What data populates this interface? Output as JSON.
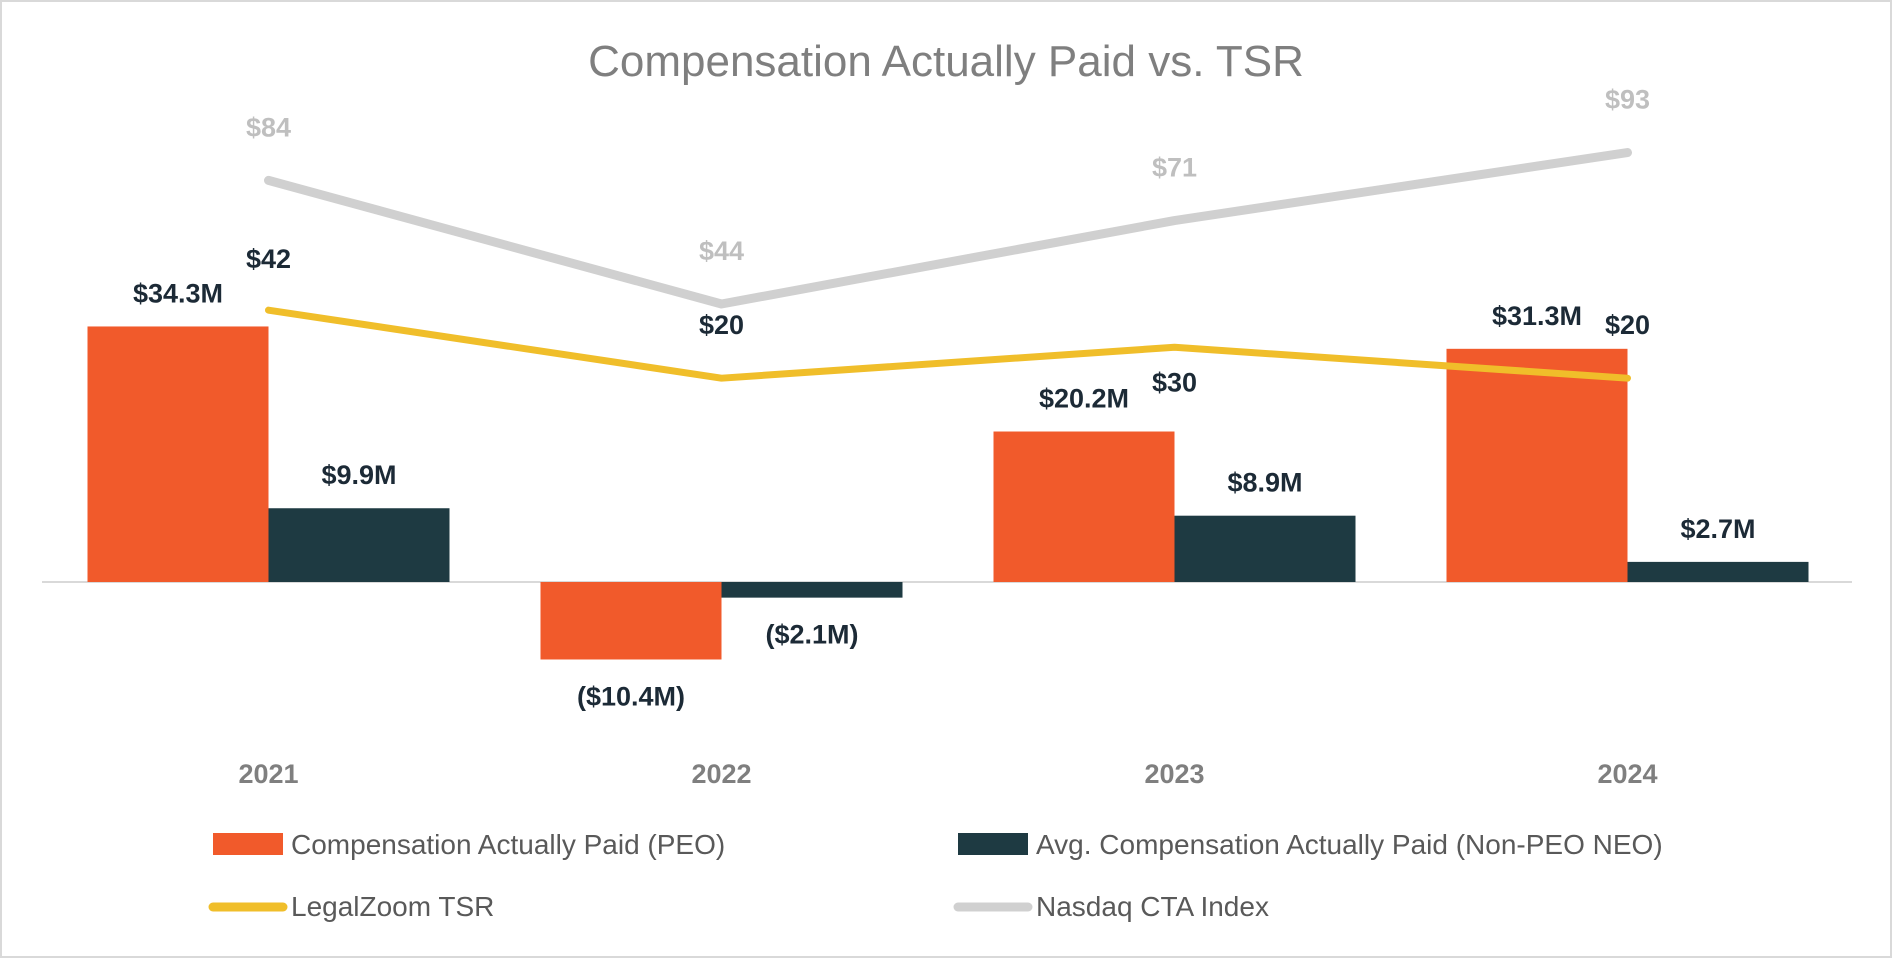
{
  "colors": {
    "peo": "#f15a2b",
    "non_peo": "#1e3a42",
    "tsr": "#f0be2a",
    "index": "#d0d0d0"
  },
  "chart_data": {
    "type": "bar",
    "title": "Compensation Actually Paid vs. TSR",
    "categories": [
      "2021",
      "2022",
      "2023",
      "2024"
    ],
    "series": [
      {
        "name": "Compensation Actually Paid (PEO)",
        "kind": "bar",
        "values": [
          34.3,
          -10.4,
          20.2,
          31.3
        ],
        "labels": [
          "$34.3M",
          "($10.4M)",
          "$20.2M",
          "$31.3M"
        ]
      },
      {
        "name": "Avg. Compensation Actually Paid (Non-PEO NEO)",
        "kind": "bar",
        "values": [
          9.9,
          -2.1,
          8.9,
          2.7
        ],
        "labels": [
          "$9.9M",
          "($2.1M)",
          "$8.9M",
          "$2.7M"
        ]
      },
      {
        "name": "LegalZoom TSR",
        "kind": "line",
        "values": [
          42,
          20,
          30,
          20
        ],
        "labels": [
          "$42",
          "$20",
          "$30",
          "$20"
        ]
      },
      {
        "name": "Nasdaq CTA Index",
        "kind": "line",
        "values": [
          84,
          44,
          71,
          93
        ],
        "labels": [
          "$84",
          "$44",
          "$71",
          "$93"
        ]
      }
    ],
    "bar_axis": {
      "unit": "$M",
      "ylim": [
        -15,
        45
      ]
    },
    "line_axis": {
      "unit": "$",
      "ylim": [
        0,
        110
      ]
    },
    "grid": false,
    "legend_position": "bottom"
  }
}
